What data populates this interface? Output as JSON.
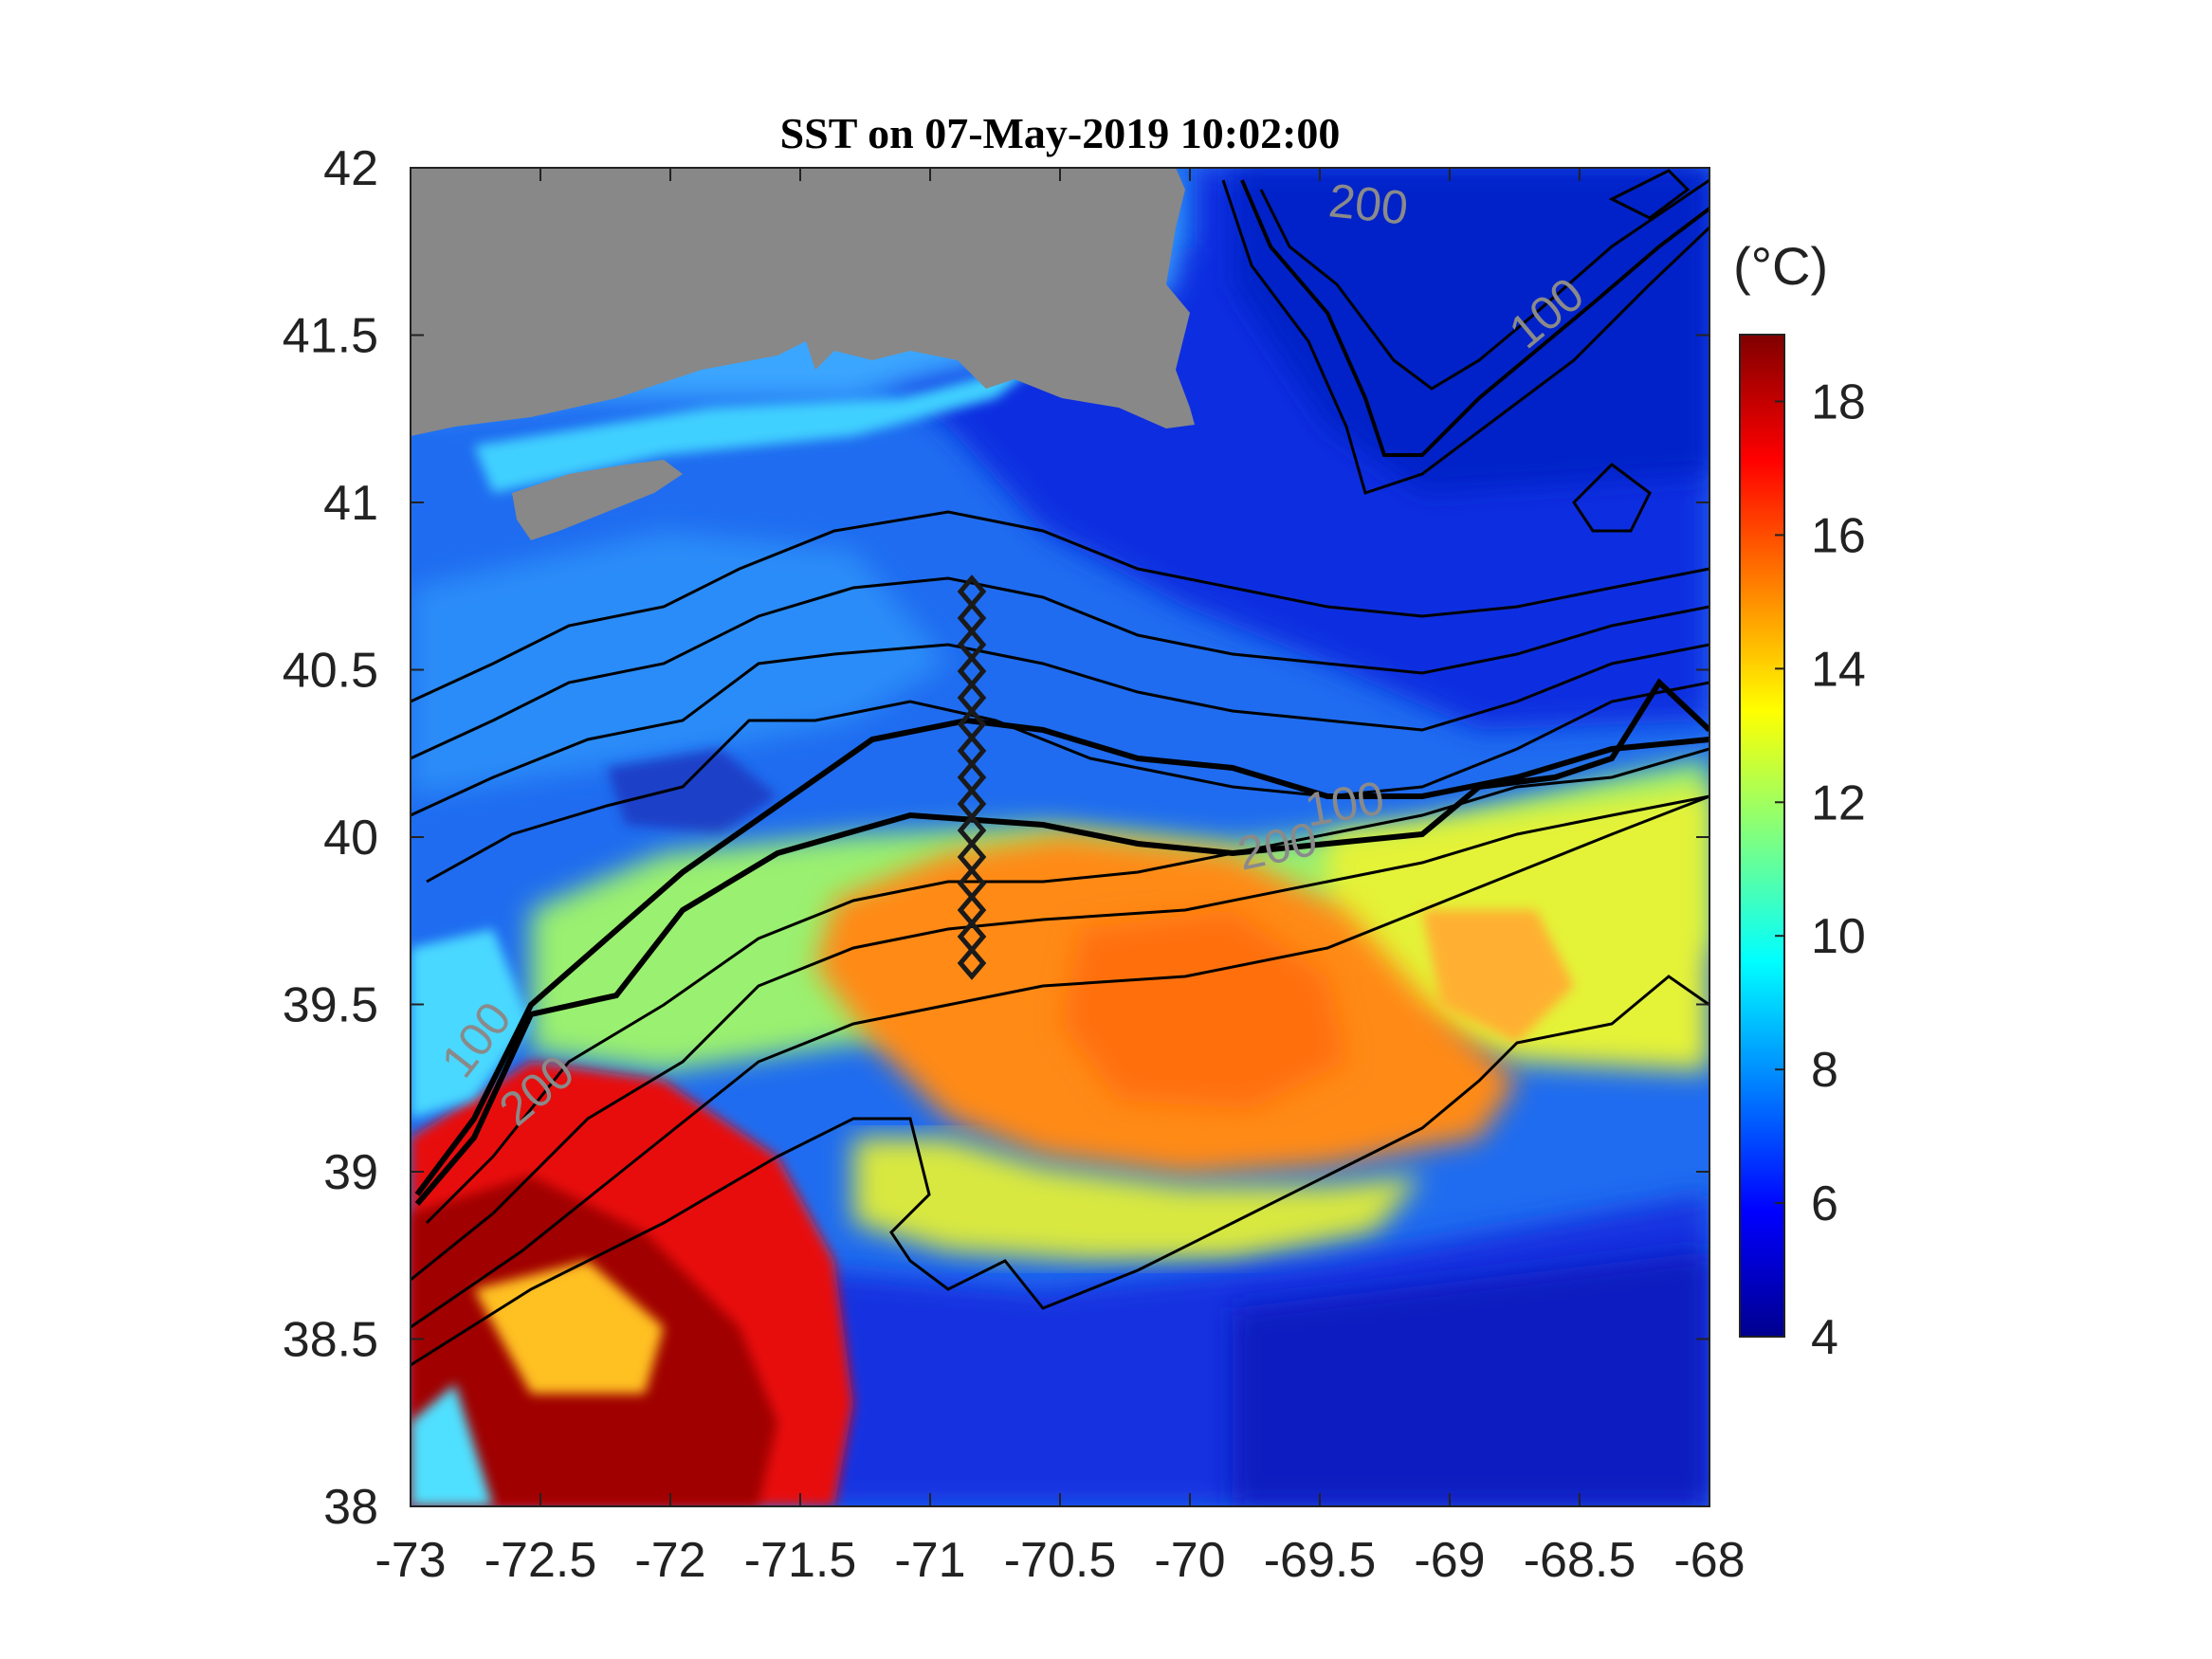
{
  "title": "SST on 07-May-2019 10:02:00",
  "x_axis": {
    "ticks": [
      "-73",
      "-72.5",
      "-72",
      "-71.5",
      "-71",
      "-70.5",
      "-70",
      "-69.5",
      "-69",
      "-68.5",
      "-68"
    ],
    "range": [
      -73,
      -68
    ]
  },
  "y_axis": {
    "ticks": [
      "42",
      "41.5",
      "41",
      "40.5",
      "40",
      "39.5",
      "39",
      "38.5",
      "38"
    ],
    "range": [
      38,
      42
    ]
  },
  "colorbar": {
    "unit_label": "(°C)",
    "ticks": [
      "18",
      "16",
      "14",
      "12",
      "10",
      "8",
      "6",
      "4"
    ],
    "range": [
      4,
      19
    ],
    "colormap": "jet"
  },
  "contour_labels": [
    "200",
    "100",
    "100",
    "200",
    "200",
    "100",
    "200"
  ],
  "colors": {
    "land": "#888888",
    "contour": "#000000",
    "label": "#8a8a8a"
  },
  "station_transect": {
    "lon": -70.83,
    "lat_start": 40.75,
    "lat_end": 39.62,
    "marker": "diamond"
  }
}
